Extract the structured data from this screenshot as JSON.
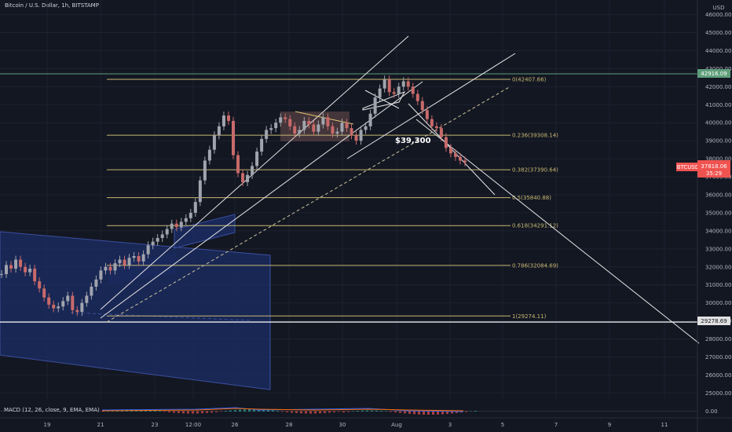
{
  "header": {
    "title": "Bitcoin / U.S. Dollar, 1h, BITSTAMP"
  },
  "colors": {
    "background": "#131722",
    "grid": "#1e2230",
    "up_candle": "#a0a4ad",
    "down_candle": "#c86a6a",
    "fib_line": "#c9b873",
    "trend_line": "#e6e6e6",
    "channel_fill": "#1c2d66",
    "channel_edge": "#3a4fa0",
    "price_badge": "#ef5350",
    "horizontal_green": "#5e9e7a"
  },
  "chart_data": {
    "type": "candlestick",
    "y_axis_currency": "USD",
    "ylim": [
      24400,
      47000
    ],
    "y_ticks": [
      25000,
      26000,
      27000,
      28000,
      29000,
      30000,
      31000,
      32000,
      33000,
      34000,
      35000,
      36000,
      37000,
      38000,
      39000,
      40000,
      41000,
      42000,
      43000,
      44000,
      45000,
      46000,
      47000
    ],
    "x_ticks": [
      "19",
      "21",
      "23",
      "12:00",
      "26",
      "28",
      "30",
      "Aug",
      "3",
      "5",
      "7",
      "9",
      "11"
    ],
    "fib_levels": [
      {
        "ratio": "0",
        "value": 42407.66,
        "label": "0(42407.66)"
      },
      {
        "ratio": "0.236",
        "value": 39308.14,
        "label": "0.236(39308.14)"
      },
      {
        "ratio": "0.382",
        "value": 37390.64,
        "label": "0.382(37390.64)"
      },
      {
        "ratio": "0.5",
        "value": 35840.88,
        "label": "0.5(35840.88)"
      },
      {
        "ratio": "0.618",
        "value": 34291.12,
        "label": "0.618(34291.12)"
      },
      {
        "ratio": "0.786",
        "value": 32084.69,
        "label": "0.786(32084.69)"
      },
      {
        "ratio": "1",
        "value": 29274.11,
        "label": "1(29274.11)"
      }
    ],
    "annotation": "$39,300",
    "price_badges": [
      {
        "label": "BTCUSD",
        "value": "37818.06",
        "sub": "35:29"
      },
      {
        "value": "42916.09"
      },
      {
        "value": "29278.69"
      }
    ],
    "ohlc_path": [
      31600,
      32100,
      31900,
      32400,
      32000,
      31700,
      31900,
      31200,
      30800,
      30300,
      29900,
      29700,
      29800,
      30100,
      30400,
      29600,
      29500,
      30000,
      30400,
      30900,
      31300,
      31800,
      32000,
      31800,
      32200,
      32400,
      32100,
      32500,
      32600,
      32300,
      32700,
      33200,
      33400,
      33600,
      33800,
      34100,
      34400,
      34200,
      34500,
      34700,
      35000,
      35600,
      36800,
      37900,
      38500,
      39300,
      39800,
      40400,
      40100,
      38200,
      37200,
      36700,
      37100,
      37600,
      38400,
      39100,
      39600,
      39700,
      40000,
      40300,
      40200,
      39800,
      39400,
      39600,
      40100,
      39900,
      39500,
      39900,
      40300,
      39800,
      39400,
      39500,
      40000,
      39700,
      39300,
      39000,
      39600,
      39800,
      40500,
      41400,
      41900,
      42400,
      41700,
      41600,
      42000,
      42300,
      42000,
      41600,
      41200,
      40700,
      40200,
      39800,
      39700,
      39200,
      38600,
      38300,
      38100,
      37900,
      37800
    ]
  },
  "macd": {
    "label": "MACD (12, 26, close, 9, EMA, EMA)",
    "zero_label": "0.00"
  }
}
